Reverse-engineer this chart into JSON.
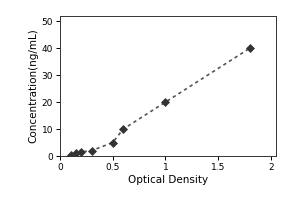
{
  "x_data": [
    0.1,
    0.15,
    0.2,
    0.3,
    0.5,
    0.6,
    1.0,
    1.8
  ],
  "y_data": [
    0.5,
    1.0,
    1.5,
    2.0,
    5.0,
    10.0,
    20.0,
    40.0
  ],
  "xlabel": "Optical Density",
  "ylabel": "Concentration(ng/mL)",
  "xlim": [
    0.05,
    2.05
  ],
  "ylim": [
    0,
    52
  ],
  "xticks": [
    0,
    0.5,
    1.0,
    1.5,
    2.0
  ],
  "yticks": [
    0,
    10,
    20,
    30,
    40,
    50
  ],
  "line_color": "#555555",
  "marker_color": "#333333",
  "background_color": "#ffffff",
  "marker_size": 4,
  "line_width": 1.2,
  "tick_fontsize": 6.5,
  "label_fontsize": 7.5,
  "fig_width": 3.0,
  "fig_height": 2.0,
  "fig_dpi": 100
}
